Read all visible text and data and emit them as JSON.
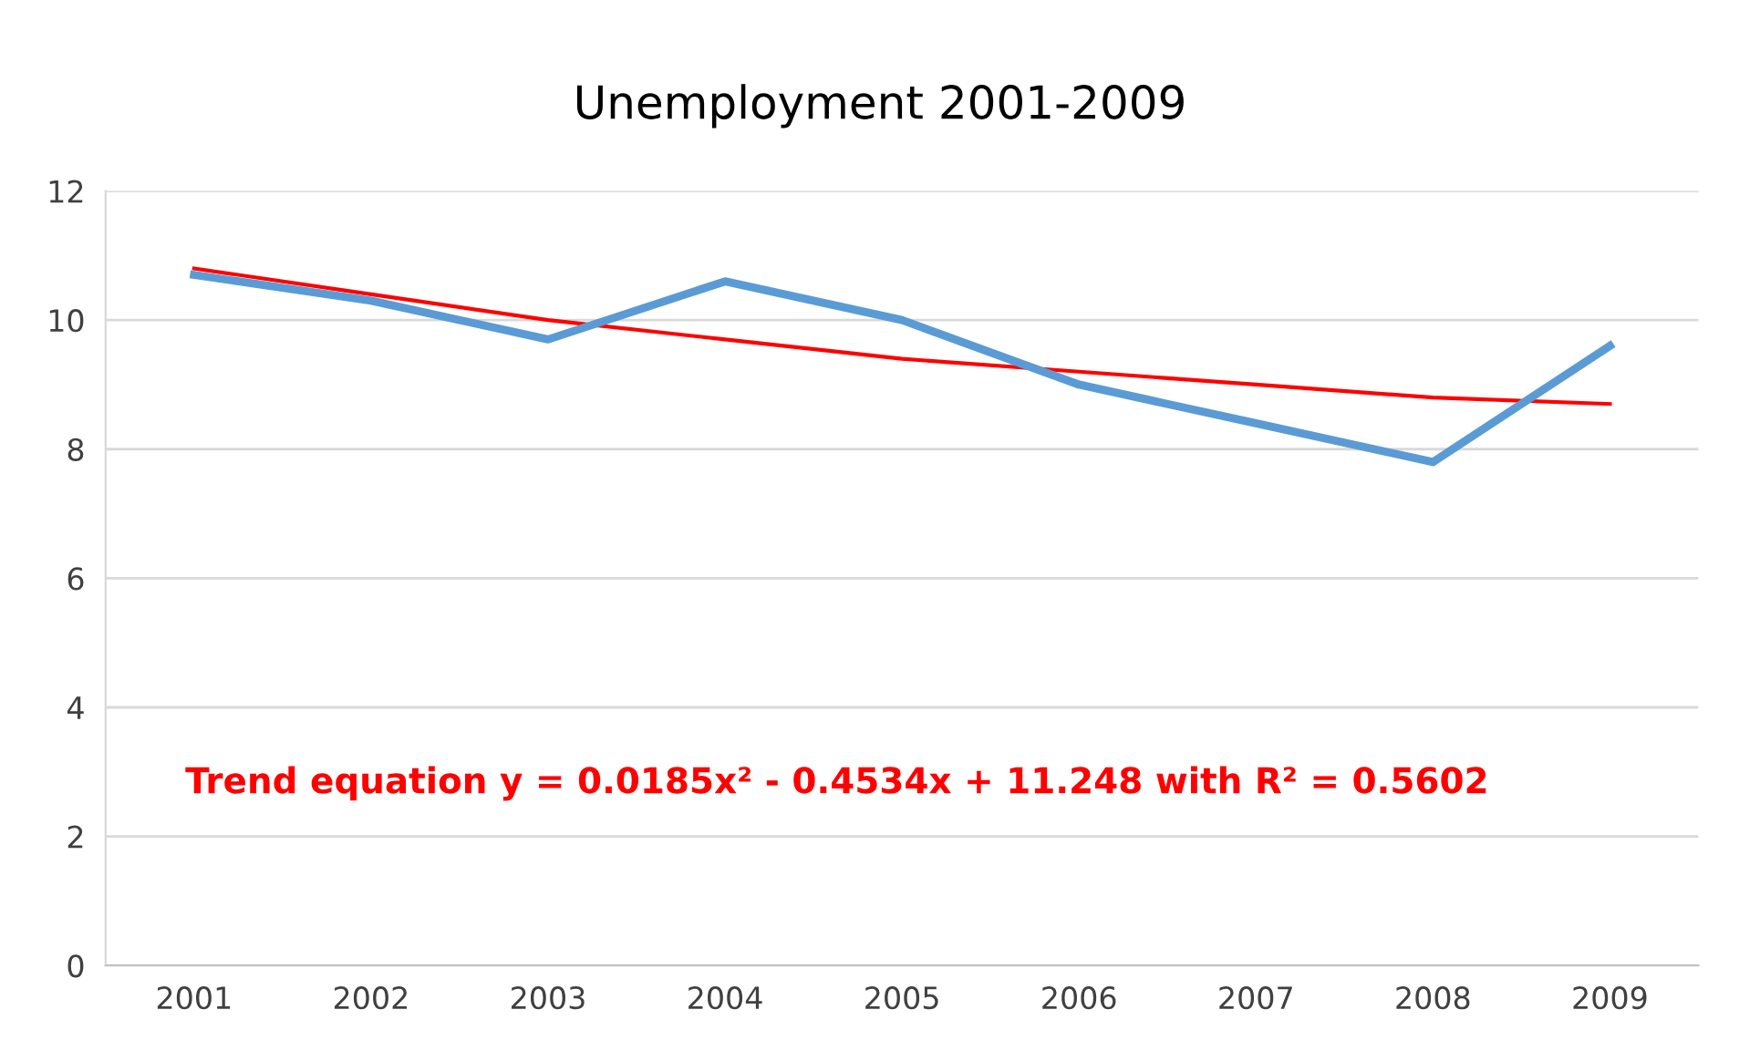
{
  "chart_data": {
    "type": "line",
    "title": "Unemployment 2001-2009",
    "categories": [
      "2001",
      "2002",
      "2003",
      "2004",
      "2005",
      "2006",
      "2007",
      "2008",
      "2009"
    ],
    "series": [
      {
        "color": "#5b9bd5",
        "values": [
          10.7,
          10.3,
          9.7,
          10.6,
          10.0,
          9.0,
          8.4,
          7.8,
          9.6
        ]
      },
      {
        "color": "#ff0000",
        "values": [
          10.8,
          10.4,
          10.0,
          9.7,
          9.4,
          9.2,
          9.0,
          8.8,
          8.7
        ]
      }
    ],
    "ylim": [
      0,
      12
    ],
    "yticks": [
      0,
      2,
      4,
      6,
      8,
      10,
      12
    ],
    "grid": "y",
    "annotations": [
      "Trend equation y = 0.0185x² - 0.4534x + 11.248 with R² = 0.5602"
    ]
  }
}
